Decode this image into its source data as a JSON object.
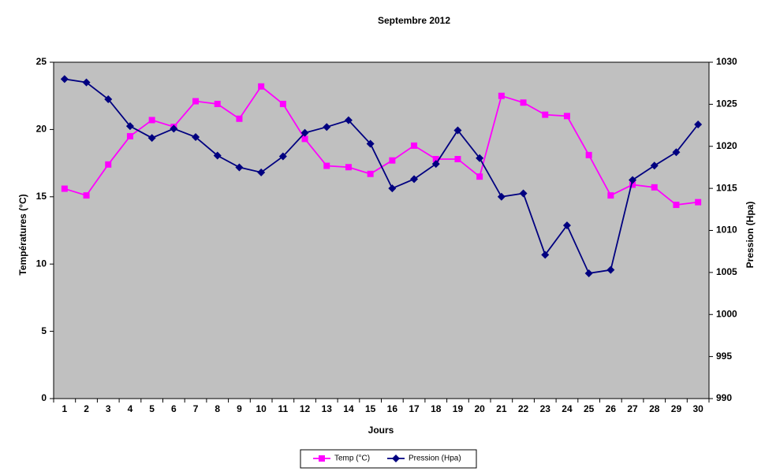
{
  "chart_data": {
    "type": "line",
    "title": "Septembre 2012",
    "x_label": "Jours",
    "y_label": "Températures (°C)",
    "y2_label": "Pression (Hpa)",
    "categories": [
      "1",
      "2",
      "3",
      "4",
      "5",
      "6",
      "7",
      "8",
      "9",
      "10",
      "11",
      "12",
      "13",
      "14",
      "15",
      "16",
      "17",
      "18",
      "19",
      "20",
      "21",
      "22",
      "23",
      "24",
      "25",
      "26",
      "27",
      "28",
      "29",
      "30"
    ],
    "series": [
      {
        "name": "Temp (°C)",
        "color": "#ff00ff",
        "marker": "square",
        "values": [
          15.6,
          15.1,
          17.4,
          19.5,
          20.7,
          20.2,
          22.1,
          21.9,
          20.8,
          23.2,
          21.9,
          19.3,
          17.3,
          17.2,
          16.7,
          17.7,
          18.8,
          17.8,
          17.8,
          16.5,
          22.5,
          22.0,
          21.1,
          21.0,
          18.1,
          15.1,
          15.9,
          15.7,
          14.4,
          14.6
        ]
      },
      {
        "name": "Pression (Hpa)",
        "color": "#000080",
        "marker": "diamond",
        "axis": "y2",
        "values": [
          1028.0,
          1027.6,
          1025.6,
          1022.4,
          1021.0,
          1022.1,
          1021.1,
          1018.9,
          1017.5,
          1016.9,
          1018.8,
          1021.6,
          1022.3,
          1023.1,
          1020.3,
          1015.0,
          1016.1,
          1017.9,
          1021.9,
          1018.6,
          1014.0,
          1014.4,
          1007.1,
          1010.6,
          1004.9,
          1005.3,
          1016.0,
          1017.7,
          1019.3,
          1022.6
        ]
      }
    ],
    "ylim": [
      0,
      25
    ],
    "yticks": [
      0,
      5,
      10,
      15,
      20,
      25
    ],
    "y2lim": [
      990,
      1030
    ],
    "y2ticks": [
      990,
      995,
      1000,
      1005,
      1010,
      1015,
      1020,
      1025,
      1030
    ],
    "grid": false,
    "legend": "bottom"
  }
}
